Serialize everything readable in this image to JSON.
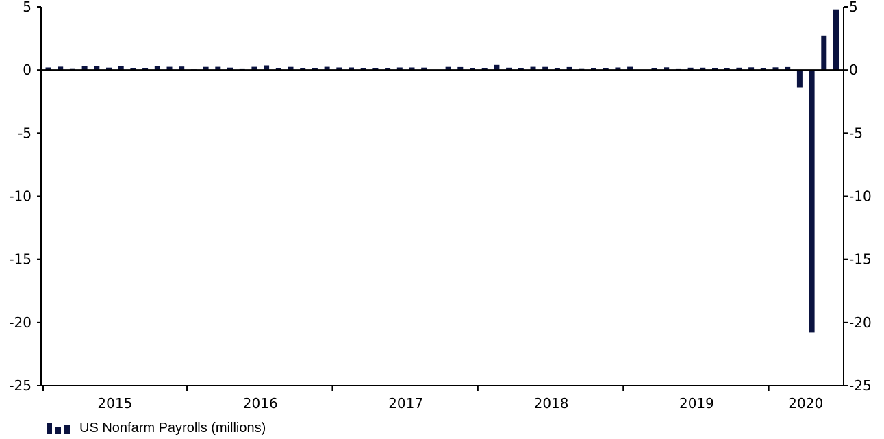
{
  "colors": {
    "bar": "#0b1340",
    "axis": "#000000"
  },
  "legend": {
    "label": "US Nonfarm Payrolls (millions)"
  },
  "chart_data": {
    "type": "bar",
    "ylim": [
      -25,
      5
    ],
    "yticks": [
      5,
      0,
      -5,
      -10,
      -15,
      -20,
      -25
    ],
    "grid": false,
    "legend_position": "bottom-left",
    "year_labels": [
      "2015",
      "2016",
      "2017",
      "2018",
      "2019",
      "2020"
    ],
    "x_start": "2015-01",
    "series": [
      {
        "name": "US Nonfarm Payrolls (millions)",
        "values": [
          0.2,
          0.26,
          0.08,
          0.3,
          0.3,
          0.19,
          0.3,
          0.14,
          0.14,
          0.3,
          0.25,
          0.27,
          0.05,
          0.24,
          0.25,
          0.19,
          0.07,
          0.25,
          0.36,
          0.14,
          0.24,
          0.14,
          0.14,
          0.25,
          0.2,
          0.2,
          0.12,
          0.16,
          0.15,
          0.2,
          0.2,
          0.19,
          0.02,
          0.24,
          0.23,
          0.14,
          0.16,
          0.4,
          0.18,
          0.15,
          0.25,
          0.24,
          0.14,
          0.23,
          0.08,
          0.16,
          0.14,
          0.2,
          0.25,
          0.01,
          0.14,
          0.21,
          0.07,
          0.18,
          0.18,
          0.16,
          0.16,
          0.18,
          0.21,
          0.17,
          0.21,
          0.23,
          -1.37,
          -20.79,
          2.73,
          4.8
        ]
      }
    ]
  }
}
